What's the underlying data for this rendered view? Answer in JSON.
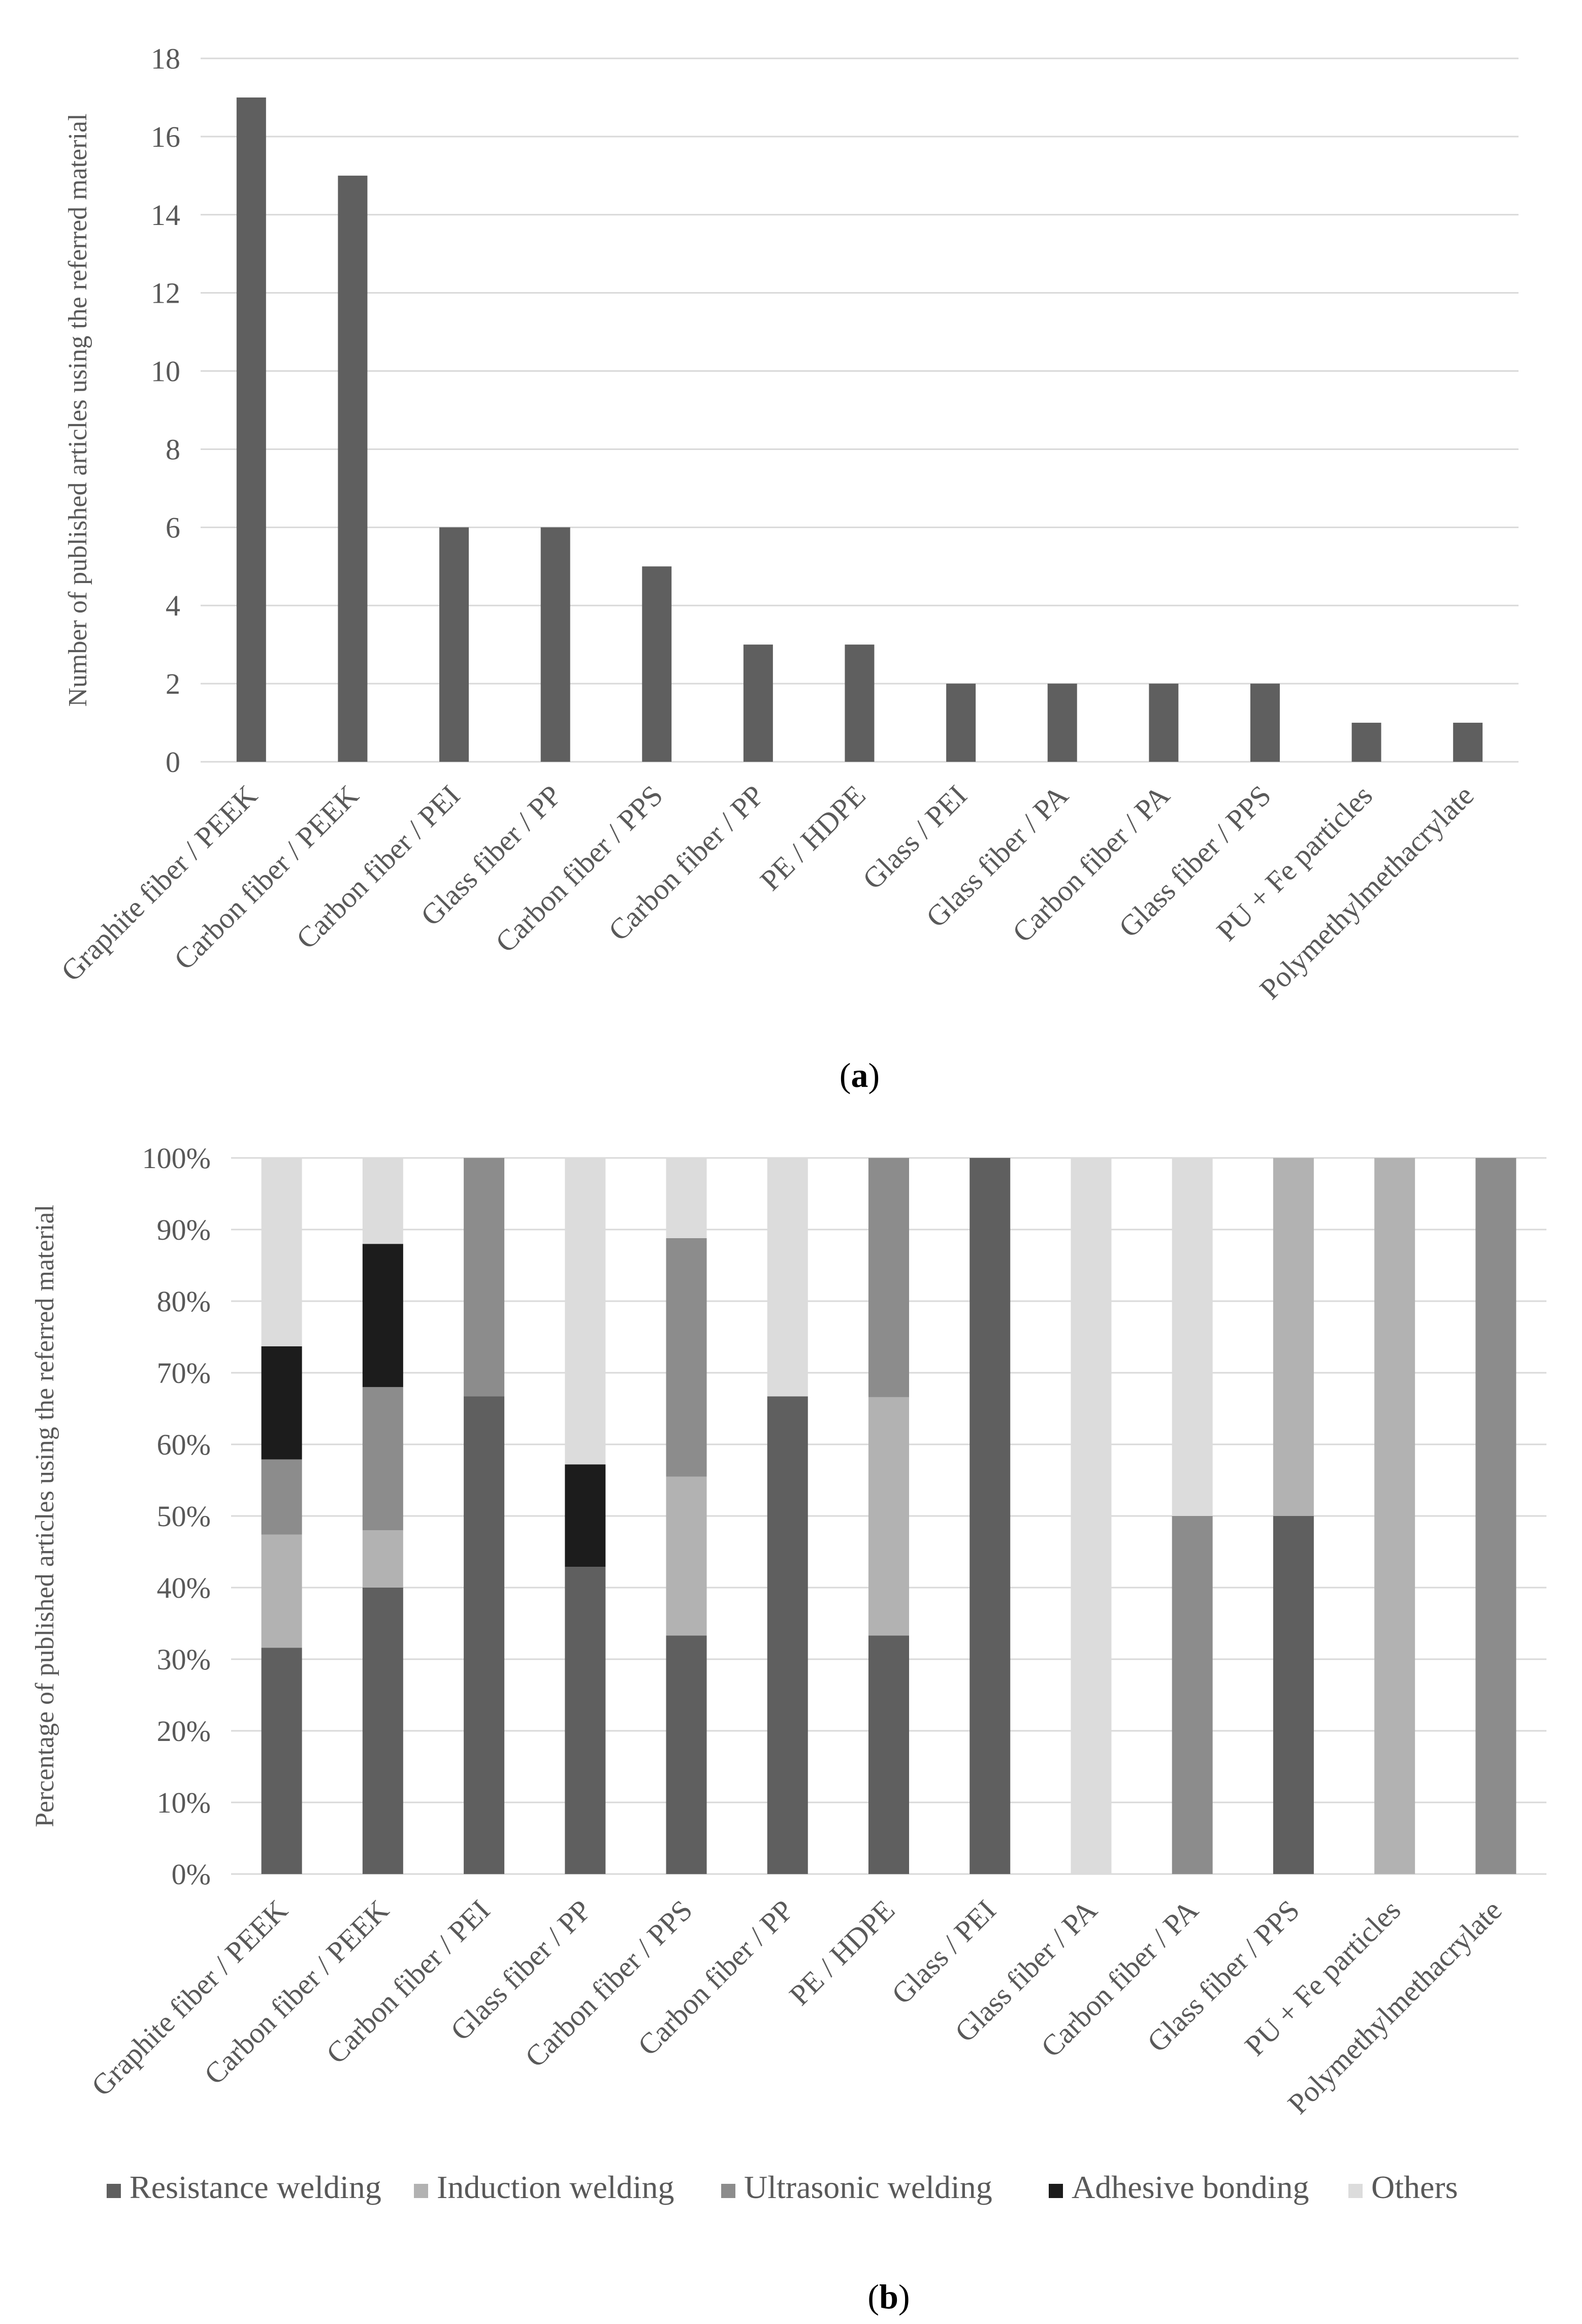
{
  "colors": {
    "bar_a": "#5f5f5f",
    "Resistance welding": "#5f5f5f",
    "Induction welding": "#b2b2b2",
    "Ultrasonic welding": "#8c8c8c",
    "Adhesive bonding": "#1c1c1c",
    "Others": "#dcdcdc"
  },
  "chart_data": [
    {
      "id": "a",
      "type": "bar",
      "caption_letter": "a",
      "title": "",
      "xlabel": "",
      "ylabel": "Number of published articles using the referred material",
      "categories": [
        "Graphite fiber / PEEK",
        "Carbon fiber / PEEK",
        "Carbon fiber / PEI",
        "Glass fiber / PP",
        "Carbon fiber / PPS",
        "Carbon fiber / PP",
        "PE / HDPE",
        "Glass / PEI",
        "Glass fiber / PA",
        "Carbon fiber / PA",
        "Glass fiber / PPS",
        "PU + Fe particles",
        "Polymethylmethacrylate"
      ],
      "values": [
        17,
        15,
        6,
        6,
        5,
        3,
        3,
        2,
        2,
        2,
        2,
        1,
        1
      ],
      "ylim": [
        0,
        18
      ],
      "yticks": [
        "0",
        "2",
        "4",
        "6",
        "8",
        "10",
        "12",
        "14",
        "16",
        "18"
      ],
      "grid": true
    },
    {
      "id": "b",
      "type": "bar",
      "stacked": true,
      "caption_letter": "b",
      "title": "",
      "xlabel": "",
      "ylabel": "Percentage of published articles using the referred material",
      "categories": [
        "Graphite fiber / PEEK",
        "Carbon fiber / PEEK",
        "Carbon fiber / PEI",
        "Glass fiber / PP",
        "Carbon fiber / PPS",
        "Carbon fiber / PP",
        "PE / HDPE",
        "Glass / PEI",
        "Glass fiber / PA",
        "Carbon fiber / PA",
        "Glass fiber / PPS",
        "PU + Fe particles",
        "Polymethylmethacrylate"
      ],
      "series": [
        {
          "name": "Resistance welding",
          "values": [
            31.6,
            40,
            66.7,
            42.9,
            33.3,
            66.7,
            33.3,
            100,
            0,
            0,
            50,
            0,
            0
          ]
        },
        {
          "name": "Induction welding",
          "values": [
            15.8,
            8,
            0,
            0,
            22.2,
            0,
            33.3,
            0,
            0,
            0,
            50,
            100,
            0
          ]
        },
        {
          "name": "Ultrasonic welding",
          "values": [
            10.5,
            20,
            33.3,
            0,
            33.3,
            0,
            33.4,
            0,
            0,
            50,
            0,
            0,
            100
          ]
        },
        {
          "name": "Adhesive bonding",
          "values": [
            15.8,
            20,
            0,
            14.3,
            0,
            0,
            0,
            0,
            0,
            0,
            0,
            0,
            0
          ]
        },
        {
          "name": "Others",
          "values": [
            26.3,
            12,
            0,
            42.8,
            11.2,
            33.3,
            0,
            0,
            100,
            50,
            0,
            0,
            0
          ]
        }
      ],
      "ylim": [
        0,
        100
      ],
      "yticks": [
        "0%",
        "10%",
        "20%",
        "30%",
        "40%",
        "50%",
        "60%",
        "70%",
        "80%",
        "90%",
        "100%"
      ],
      "legend": [
        "Resistance welding",
        "Induction welding",
        "Ultrasonic welding",
        "Adhesive bonding",
        "Others"
      ],
      "legend_position": "bottom",
      "grid": true
    }
  ]
}
